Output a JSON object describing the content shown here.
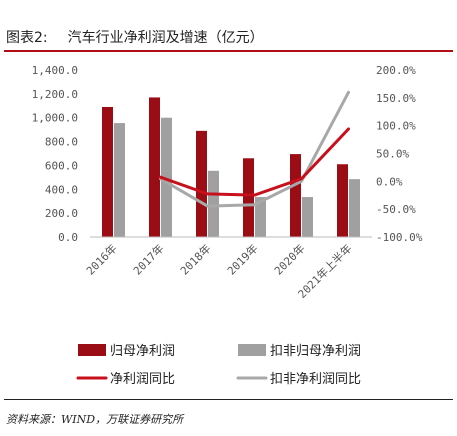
{
  "figure": {
    "label": "图表2:",
    "title": "汽车行业净利润及增速（亿元）",
    "source": "资料来源：WIND，万联证券研究所"
  },
  "colors": {
    "accent_rule": "#b10d18",
    "bar_primary": "#9b0d15",
    "bar_secondary": "#a0a0a0",
    "line_primary": "#c8101c",
    "line_secondary": "#a8a8a8"
  },
  "chart_data": {
    "type": "bar",
    "categories": [
      "2016年",
      "2017年",
      "2018年",
      "2019年",
      "2020年",
      "2021年上半年"
    ],
    "series": [
      {
        "name": "归母净利润",
        "type": "bar",
        "axis": "left",
        "values": [
          1090,
          1170,
          890,
          660,
          695,
          610
        ]
      },
      {
        "name": "扣非归母净利润",
        "type": "bar",
        "axis": "left",
        "values": [
          955,
          1000,
          555,
          335,
          335,
          485
        ]
      },
      {
        "name": "净利润同比",
        "type": "line",
        "axis": "right",
        "values": [
          null,
          7.5,
          -22.5,
          -24.8,
          4.8,
          94.0
        ]
      },
      {
        "name": "扣非净利润同比",
        "type": "line",
        "axis": "right",
        "values": [
          null,
          4.5,
          -44.5,
          -42.0,
          0.0,
          160.0
        ]
      }
    ],
    "left_axis": {
      "min": 0,
      "max": 1400,
      "step": 200,
      "ticks": [
        "0.0",
        "200.0",
        "400.0",
        "600.0",
        "800.0",
        "1,000.0",
        "1,200.0",
        "1,400.0"
      ]
    },
    "right_axis": {
      "min": -100,
      "max": 200,
      "step": 50,
      "ticks": [
        "-100.0%",
        "-50.0%",
        "0.0%",
        "50.0%",
        "100.0%",
        "150.0%",
        "200.0%"
      ]
    },
    "grid": false,
    "legend_position": "bottom"
  }
}
